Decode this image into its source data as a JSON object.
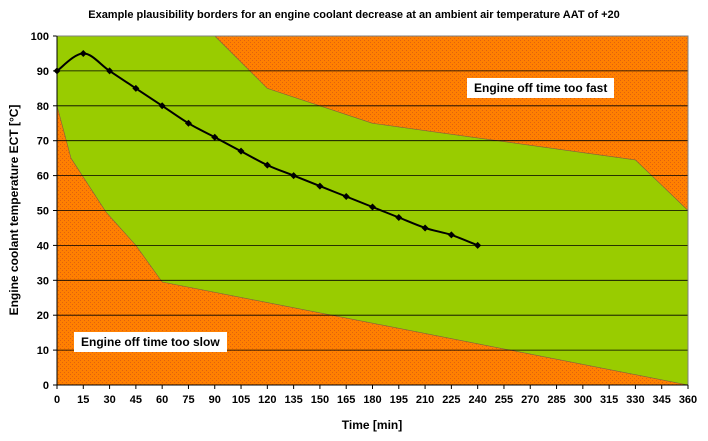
{
  "chart_data": {
    "type": "area",
    "title": "Example plausibility borders for an engine coolant decrease at an ambient air temperature AAT of +20",
    "xlabel": "Time [min]",
    "ylabel": "Engine coolant temperature ECT [°C]",
    "xlim": [
      0,
      360
    ],
    "ylim": [
      0,
      100
    ],
    "x_ticks": [
      0,
      15,
      30,
      45,
      60,
      75,
      90,
      105,
      120,
      135,
      150,
      165,
      180,
      195,
      210,
      225,
      240,
      255,
      270,
      285,
      300,
      315,
      330,
      345,
      360
    ],
    "y_ticks": [
      0,
      10,
      20,
      30,
      40,
      50,
      60,
      70,
      80,
      90,
      100
    ],
    "grid": "horizontal",
    "regions": [
      {
        "label": "Engine off time too fast",
        "color": "#ff8000",
        "upper_border": [
          [
            90,
            100
          ],
          [
            120,
            85
          ],
          [
            180,
            75
          ],
          [
            330,
            64.5
          ],
          [
            360,
            50
          ]
        ]
      },
      {
        "color": "#99cc00"
      },
      {
        "label": "Engine off time too slow",
        "color": "#ff8000",
        "lower_border": [
          [
            0,
            80
          ],
          [
            8,
            65
          ],
          [
            28,
            49.5
          ],
          [
            45,
            40
          ],
          [
            60,
            29.5
          ],
          [
            360,
            0
          ]
        ]
      }
    ],
    "series": [
      {
        "color": "#000000",
        "x": [
          0,
          15,
          30,
          45,
          60,
          75,
          90,
          105,
          120,
          135,
          150,
          165,
          180,
          195,
          210,
          225,
          240
        ],
        "y": [
          90,
          95,
          90,
          85,
          80,
          75,
          71,
          67,
          63,
          60,
          57,
          54,
          51,
          48,
          45,
          43,
          40
        ]
      }
    ]
  }
}
